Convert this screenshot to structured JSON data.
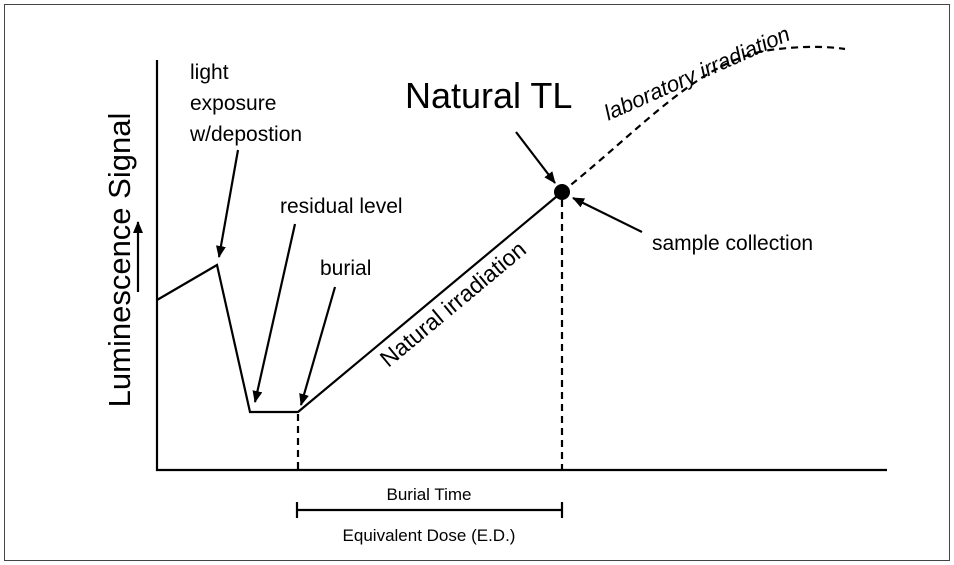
{
  "diagram": {
    "y_axis_label": "Luminescence Signal",
    "labels": {
      "light_exposure": [
        "light",
        "exposure",
        "w/depostion"
      ],
      "residual_level": "residual level",
      "burial": "burial",
      "natural_tl": "Natural TL",
      "sample_collection": "sample collection",
      "natural_irradiation": "Natural irradiation",
      "laboratory_irradiation": "laboratory irradiation"
    },
    "bracket": {
      "top": "Burial Time",
      "bottom": "Equivalent Dose (E.D.)"
    }
  }
}
